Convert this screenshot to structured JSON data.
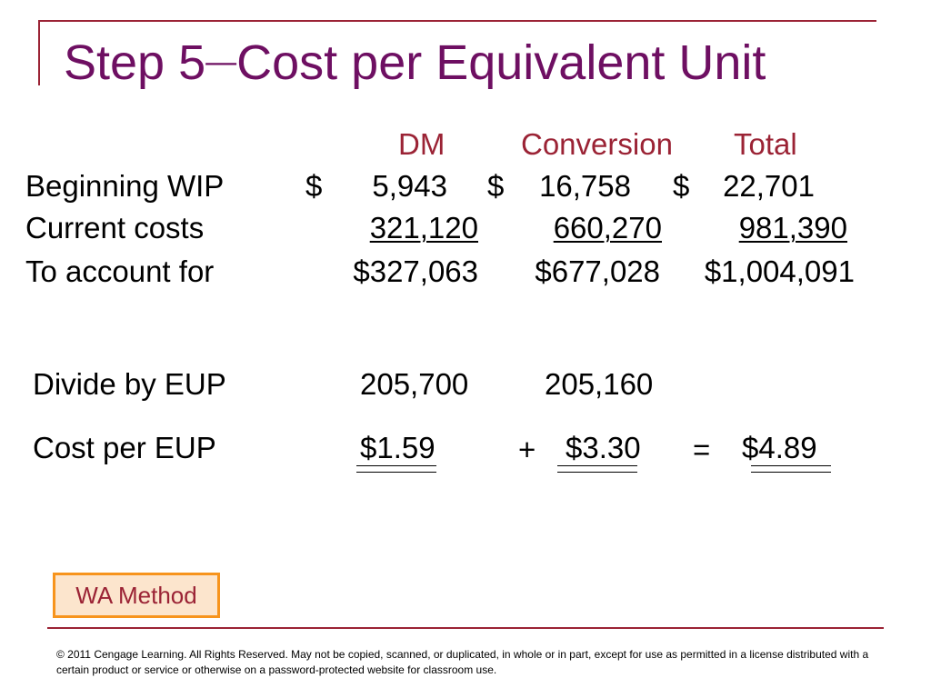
{
  "slide": {
    "title_part1": "Step 5",
    "title_dash": "—",
    "title_part2": "Cost per Equivalent Unit",
    "headers": {
      "dm": "DM",
      "conversion": "Conversion",
      "total": "Total"
    },
    "rows": [
      {
        "label": "Beginning WIP",
        "dm_sign": "$",
        "dm": "5,943",
        "conv_sign": "$",
        "conv": "16,758",
        "total_sign": "$",
        "total": "22,701"
      },
      {
        "label": "Current costs",
        "dm": "321,120",
        "conv": "660,270",
        "total": "981,390"
      },
      {
        "label": "To account for",
        "dm": "$327,063",
        "conv": "$677,028",
        "total": "$1,004,091"
      }
    ],
    "eup": {
      "label": "Divide by EUP",
      "dm": "205,700",
      "conv": "205,160"
    },
    "cost_per_eup": {
      "label": "Cost per EUP",
      "dm": "$1.59",
      "plus": "+",
      "conv": "$3.30",
      "equals": "=",
      "total": "$4.89"
    },
    "method_box": "WA Method",
    "copyright": "© 2011 Cengage Learning.  All Rights Reserved.  May not be copied, scanned, or duplicated, in whole or in part, except for use as permitted in a license distributed with a certain product or service or otherwise on a password-protected website for classroom use."
  },
  "colors": {
    "title": "#6e0f62",
    "accent": "#9b2335",
    "box_border": "#f7941d",
    "box_fill": "#fce5cd"
  }
}
